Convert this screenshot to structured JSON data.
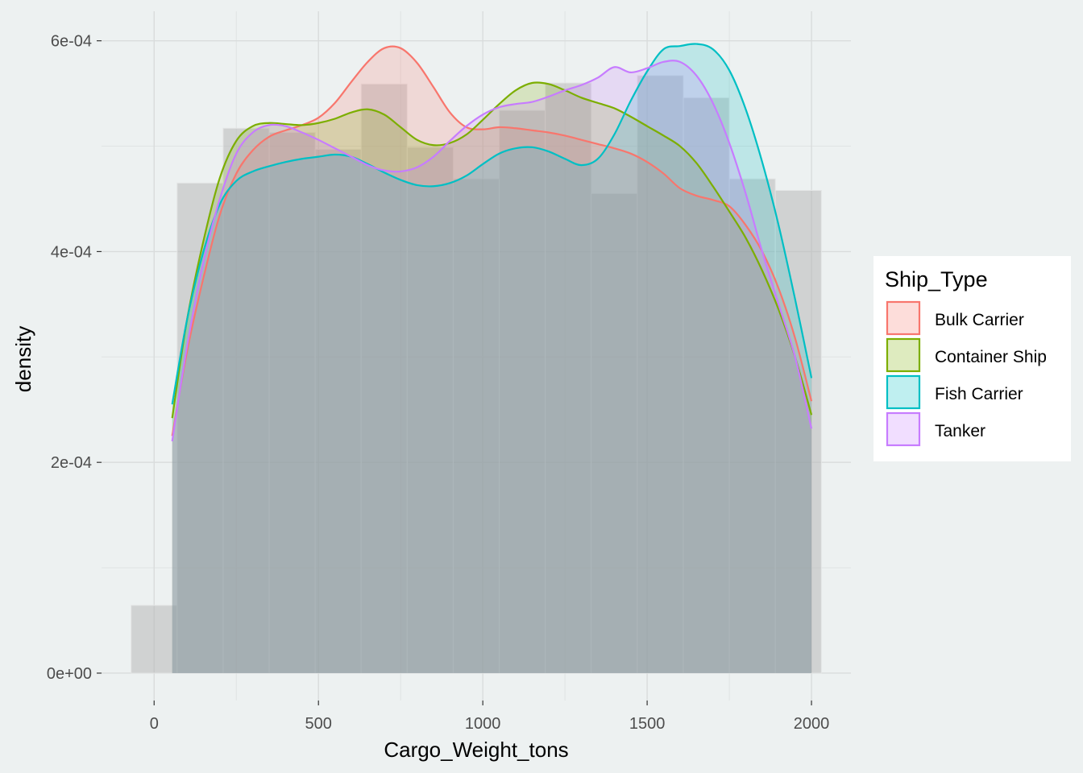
{
  "chart_data": {
    "type": "area",
    "xlabel": "Cargo_Weight_tons",
    "ylabel": "density",
    "xlim": [
      -160,
      2120
    ],
    "ylim": [
      -2.6e-05,
      0.000628
    ],
    "x_ticks": [
      {
        "value": 0,
        "label": "0"
      },
      {
        "value": 500,
        "label": "500"
      },
      {
        "value": 1000,
        "label": "1000"
      },
      {
        "value": 1500,
        "label": "1500"
      },
      {
        "value": 2000,
        "label": "2000"
      }
    ],
    "y_ticks": [
      {
        "value": 0,
        "label": "0e+00"
      },
      {
        "value": 0.0002,
        "label": "2e-04"
      },
      {
        "value": 0.0004,
        "label": "4e-04"
      },
      {
        "value": 0.0006,
        "label": "6e-04"
      }
    ],
    "grid": true,
    "histogram": {
      "color": "#b3b3b3",
      "bins": [
        {
          "x0": -70,
          "x1": 70,
          "density": 6.43e-05
        },
        {
          "x0": 70,
          "x1": 210,
          "density": 0.000465
        },
        {
          "x0": 210,
          "x1": 350,
          "density": 0.000517
        },
        {
          "x0": 350,
          "x1": 490,
          "density": 0.000513
        },
        {
          "x0": 490,
          "x1": 630,
          "density": 0.000497
        },
        {
          "x0": 630,
          "x1": 770,
          "density": 0.000559
        },
        {
          "x0": 770,
          "x1": 910,
          "density": 0.000499
        },
        {
          "x0": 910,
          "x1": 1050,
          "density": 0.000469
        },
        {
          "x0": 1050,
          "x1": 1190,
          "density": 0.000534
        },
        {
          "x0": 1190,
          "x1": 1330,
          "density": 0.00056
        },
        {
          "x0": 1330,
          "x1": 1470,
          "density": 0.000455
        },
        {
          "x0": 1470,
          "x1": 1610,
          "density": 0.000567
        },
        {
          "x0": 1610,
          "x1": 1750,
          "density": 0.000546
        },
        {
          "x0": 1750,
          "x1": 1890,
          "density": 0.000469
        },
        {
          "x0": 1890,
          "x1": 2030,
          "density": 0.000458
        }
      ]
    },
    "series": [
      {
        "name": "Bulk Carrier",
        "color": "#f8766d",
        "x": [
          55,
          100,
          150,
          200,
          250,
          300,
          350,
          400,
          450,
          500,
          550,
          600,
          650,
          700,
          750,
          800,
          850,
          900,
          950,
          1000,
          1050,
          1100,
          1150,
          1200,
          1250,
          1300,
          1350,
          1400,
          1450,
          1500,
          1550,
          1600,
          1650,
          1700,
          1750,
          1800,
          1850,
          1900,
          1950,
          2000
        ],
        "y": [
          0.000225,
          0.000305,
          0.000375,
          0.000435,
          0.000474,
          0.000496,
          0.000509,
          0.000515,
          0.00052,
          0.000527,
          0.000541,
          0.000561,
          0.00058,
          0.000593,
          0.000593,
          0.000579,
          0.000556,
          0.000532,
          0.000518,
          0.000516,
          0.000518,
          0.000517,
          0.000515,
          0.000513,
          0.00051,
          0.000506,
          0.000502,
          0.000498,
          0.000493,
          0.000485,
          0.000474,
          0.00046,
          0.000453,
          0.000449,
          0.000443,
          0.000425,
          0.0004,
          0.000365,
          0.000318,
          0.000258
        ]
      },
      {
        "name": "Container Ship",
        "color": "#7cae00",
        "x": [
          55,
          100,
          150,
          200,
          250,
          300,
          350,
          400,
          450,
          500,
          550,
          600,
          650,
          700,
          750,
          800,
          850,
          900,
          950,
          1000,
          1050,
          1100,
          1150,
          1200,
          1250,
          1300,
          1350,
          1400,
          1450,
          1500,
          1550,
          1600,
          1650,
          1700,
          1750,
          1800,
          1850,
          1900,
          1950,
          2000
        ],
        "y": [
          0.000242,
          0.000335,
          0.00041,
          0.00047,
          0.000505,
          0.000519,
          0.000522,
          0.000521,
          0.00052,
          0.000522,
          0.000526,
          0.000532,
          0.000535,
          0.00053,
          0.000518,
          0.000506,
          0.000501,
          0.000503,
          0.000511,
          0.000525,
          0.00054,
          0.000553,
          0.00056,
          0.000559,
          0.000553,
          0.000546,
          0.000541,
          0.000536,
          0.000528,
          0.000519,
          0.00051,
          0.0005,
          0.000484,
          0.000462,
          0.000438,
          0.000413,
          0.000382,
          0.000345,
          0.0003,
          0.000245
        ]
      },
      {
        "name": "Fish Carrier",
        "color": "#00bfc4",
        "x": [
          55,
          100,
          150,
          200,
          250,
          300,
          350,
          400,
          450,
          500,
          550,
          600,
          650,
          700,
          750,
          800,
          850,
          900,
          950,
          1000,
          1050,
          1100,
          1150,
          1200,
          1250,
          1300,
          1350,
          1400,
          1450,
          1500,
          1550,
          1600,
          1650,
          1700,
          1750,
          1800,
          1850,
          1900,
          1950,
          2000
        ],
        "y": [
          0.000255,
          0.000335,
          0.0004,
          0.000445,
          0.000467,
          0.000476,
          0.000481,
          0.000485,
          0.000488,
          0.00049,
          0.000492,
          0.00049,
          0.000483,
          0.000475,
          0.000468,
          0.000463,
          0.000462,
          0.000465,
          0.000472,
          0.000483,
          0.000493,
          0.000498,
          0.000499,
          0.000495,
          0.000488,
          0.000482,
          0.000488,
          0.000511,
          0.000543,
          0.000571,
          0.000592,
          0.000595,
          0.000597,
          0.000592,
          0.000572,
          0.000535,
          0.000485,
          0.000425,
          0.000355,
          0.00028
        ]
      },
      {
        "name": "Tanker",
        "color": "#c77cff",
        "x": [
          55,
          100,
          150,
          200,
          250,
          300,
          350,
          400,
          450,
          500,
          550,
          600,
          650,
          700,
          750,
          800,
          850,
          900,
          950,
          1000,
          1050,
          1100,
          1150,
          1200,
          1250,
          1300,
          1350,
          1400,
          1450,
          1500,
          1550,
          1600,
          1650,
          1700,
          1750,
          1800,
          1850,
          1900,
          1950,
          2000
        ],
        "y": [
          0.00022,
          0.00031,
          0.00039,
          0.00045,
          0.000493,
          0.000513,
          0.00052,
          0.000519,
          0.000513,
          0.000506,
          0.000498,
          0.00049,
          0.000482,
          0.000477,
          0.000476,
          0.00048,
          0.00049,
          0.000505,
          0.000519,
          0.00053,
          0.000537,
          0.00054,
          0.000542,
          0.000547,
          0.000553,
          0.000558,
          0.000565,
          0.000575,
          0.00057,
          0.000574,
          0.00058,
          0.00058,
          0.000567,
          0.000541,
          0.000503,
          0.000455,
          0.0004,
          0.00035,
          0.0003,
          0.000232
        ]
      }
    ],
    "legend": {
      "title": "Ship_Type",
      "placement": "right",
      "items": [
        "Bulk Carrier",
        "Container Ship",
        "Fish Carrier",
        "Tanker"
      ]
    }
  }
}
